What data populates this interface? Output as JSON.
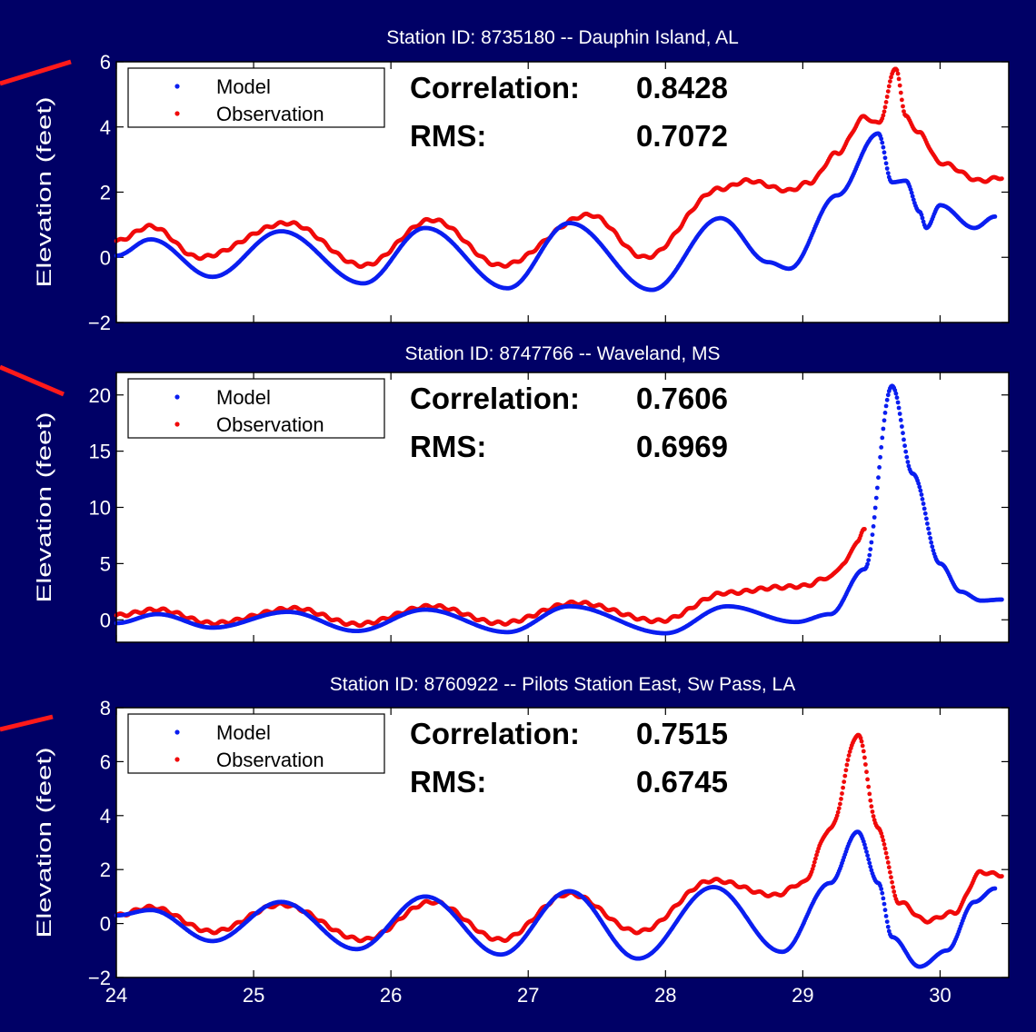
{
  "colors": {
    "background": "#000066",
    "panel_bg": "#ffffff",
    "model": "#0a1ef0",
    "observation": "#f00a0a",
    "pointer": "#ff1a1a"
  },
  "chart_data": [
    {
      "type": "scatter",
      "title": "Station ID: 8735180 -- Dauphin Island, AL",
      "ylabel": "Elevation (feet)",
      "xlim": [
        24,
        30.5
      ],
      "ylim": [
        -2,
        6
      ],
      "yticks": [
        "−2",
        "0",
        "2",
        "4",
        "6"
      ],
      "xticks": [],
      "legend": [
        "Model",
        "Observation"
      ],
      "legend_position": "top-left",
      "stats": {
        "corr_label": "Correlation:",
        "corr_value": "0.8428",
        "rms_label": "RMS:",
        "rms_value": "0.7072"
      },
      "series": [
        {
          "name": "Model",
          "x": [
            24.0,
            24.25,
            24.7,
            25.2,
            25.8,
            26.25,
            26.85,
            27.3,
            27.9,
            28.4,
            28.75,
            28.9,
            29.25,
            29.55,
            29.65,
            29.75,
            29.85,
            29.9,
            30.0,
            30.25,
            30.4
          ],
          "y": [
            0.05,
            0.55,
            -0.6,
            0.8,
            -0.8,
            0.9,
            -0.95,
            1.05,
            -1.0,
            1.2,
            -0.15,
            -0.35,
            1.9,
            3.8,
            2.3,
            2.35,
            1.4,
            0.9,
            1.6,
            0.9,
            1.25
          ]
        },
        {
          "name": "Observation",
          "x": [
            24.0,
            24.25,
            24.6,
            25.25,
            25.8,
            26.3,
            26.8,
            27.45,
            27.85,
            28.4,
            28.6,
            28.9,
            29.05,
            29.25,
            29.45,
            29.55,
            29.68,
            29.75,
            29.85,
            30.0,
            30.3,
            30.45
          ],
          "y": [
            0.5,
            0.95,
            0.0,
            1.05,
            -0.25,
            1.15,
            -0.25,
            1.3,
            0.0,
            2.1,
            2.35,
            2.05,
            2.3,
            3.2,
            4.3,
            4.1,
            5.8,
            4.3,
            3.8,
            2.9,
            2.35,
            2.45
          ]
        }
      ]
    },
    {
      "type": "scatter",
      "title": "Station ID: 8747766 -- Waveland, MS",
      "ylabel": "Elevation (feet)",
      "xlim": [
        24,
        30.5
      ],
      "ylim": [
        -2,
        22
      ],
      "yticks": [
        "0",
        "5",
        "10",
        "15",
        "20"
      ],
      "xticks": [],
      "legend": [
        "Model",
        "Observation"
      ],
      "legend_position": "top-left",
      "stats": {
        "corr_label": "Correlation:",
        "corr_value": "0.7606",
        "rms_label": "RMS:",
        "rms_value": "0.6969"
      },
      "series": [
        {
          "name": "Model",
          "x": [
            24.0,
            24.3,
            24.7,
            25.25,
            25.75,
            26.25,
            26.85,
            27.3,
            28.0,
            28.45,
            28.95,
            29.2,
            29.45,
            29.65,
            29.8,
            30.0,
            30.15,
            30.3,
            30.45
          ],
          "y": [
            -0.3,
            0.5,
            -0.7,
            0.7,
            -1.0,
            0.9,
            -1.1,
            1.2,
            -1.2,
            1.2,
            -0.2,
            0.5,
            4.5,
            20.8,
            13.0,
            5.0,
            2.5,
            1.7,
            1.8
          ]
        },
        {
          "name": "Observation",
          "x": [
            24.0,
            24.3,
            24.7,
            25.3,
            25.75,
            26.3,
            26.8,
            27.35,
            27.95,
            28.45,
            28.85,
            29.0,
            29.2,
            29.3,
            29.4,
            29.45
          ],
          "y": [
            0.4,
            0.9,
            -0.3,
            1.0,
            -0.4,
            1.2,
            -0.3,
            1.5,
            -0.1,
            2.4,
            2.9,
            3.0,
            3.8,
            5.0,
            7.0,
            8.0
          ]
        }
      ]
    },
    {
      "type": "scatter",
      "title": "Station ID: 8760922 -- Pilots Station East, Sw Pass, LA",
      "ylabel": "Elevation (feet)",
      "xlim": [
        24,
        30.5
      ],
      "ylim": [
        -2,
        8
      ],
      "yticks": [
        "−2",
        "0",
        "2",
        "4",
        "6",
        "8"
      ],
      "xticks": [
        "24",
        "25",
        "26",
        "27",
        "28",
        "29",
        "30"
      ],
      "legend": [
        "Model",
        "Observation"
      ],
      "legend_position": "top-left",
      "stats": {
        "corr_label": "Correlation:",
        "corr_value": "0.7515",
        "rms_label": "RMS:",
        "rms_value": "0.6745"
      },
      "series": [
        {
          "name": "Model",
          "x": [
            24.0,
            24.25,
            24.7,
            25.2,
            25.75,
            26.25,
            26.8,
            27.3,
            27.8,
            28.35,
            28.85,
            29.2,
            29.4,
            29.55,
            29.65,
            29.85,
            30.05,
            30.25,
            30.4
          ],
          "y": [
            0.3,
            0.5,
            -0.65,
            0.8,
            -0.95,
            1.0,
            -1.15,
            1.2,
            -1.3,
            1.35,
            -1.05,
            1.5,
            3.4,
            1.5,
            -0.5,
            -1.6,
            -1.0,
            0.8,
            1.3
          ]
        },
        {
          "name": "Observation",
          "x": [
            24.0,
            24.25,
            24.7,
            25.2,
            25.8,
            26.3,
            26.8,
            27.3,
            27.8,
            28.35,
            28.8,
            29.0,
            29.2,
            29.4,
            29.55,
            29.7,
            29.9,
            30.1,
            30.3,
            30.45
          ],
          "y": [
            0.3,
            0.6,
            -0.3,
            0.7,
            -0.6,
            0.8,
            -0.6,
            1.1,
            -0.3,
            1.6,
            1.05,
            1.5,
            3.5,
            7.0,
            3.5,
            0.8,
            0.1,
            0.4,
            1.9,
            1.8
          ]
        }
      ]
    }
  ]
}
